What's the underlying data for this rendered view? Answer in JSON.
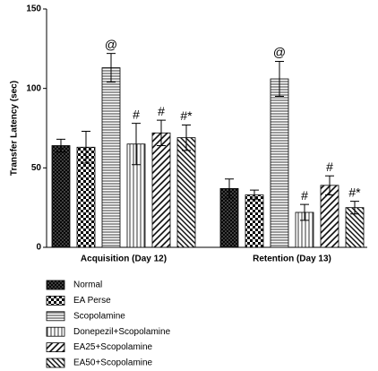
{
  "chart_data": {
    "type": "bar",
    "y_label": "Transfer Latency (sec)",
    "categories": [
      "Acquisition (Day 12)",
      "Retention (Day 13)"
    ],
    "ylim": [
      0,
      150
    ],
    "yticks": [
      0,
      50,
      100,
      150
    ],
    "series": [
      {
        "name": "Normal",
        "color": "#000000",
        "pattern": "crosshatch",
        "values": [
          64,
          37
        ],
        "errors": [
          4,
          6
        ],
        "annotations": [
          null,
          null
        ]
      },
      {
        "name": "EA Perse",
        "color": "#000000",
        "pattern": "checker",
        "values": [
          63,
          33
        ],
        "errors": [
          10,
          3
        ],
        "annotations": [
          null,
          null
        ]
      },
      {
        "name": "Scopolamine",
        "color": "#000000",
        "pattern": "horizontal",
        "values": [
          113,
          106
        ],
        "errors": [
          9,
          11
        ],
        "annotations": [
          "@",
          "@"
        ]
      },
      {
        "name": "Donepezil+Scopolamine",
        "color": "#000000",
        "pattern": "vertical",
        "values": [
          65,
          22
        ],
        "errors": [
          13,
          5
        ],
        "annotations": [
          "#",
          "#"
        ]
      },
      {
        "name": "EA25+Scopolamine",
        "color": "#000000",
        "pattern": "diagonal",
        "values": [
          72,
          39
        ],
        "errors": [
          8,
          6
        ],
        "annotations": [
          "#",
          "#"
        ]
      },
      {
        "name": "EA50+Scopolamine",
        "color": "#000000",
        "pattern": "backdiagonal",
        "values": [
          69,
          25
        ],
        "errors": [
          8,
          4
        ],
        "annotations": [
          "#*",
          "#*"
        ]
      }
    ]
  }
}
